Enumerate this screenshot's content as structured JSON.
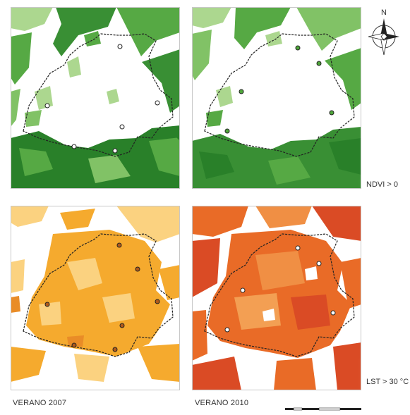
{
  "labels": {
    "ndvi": "NDVI > 0",
    "lst": "LST > 30 °C",
    "year_2007": "VERANO 2007",
    "year_2010": "VERANO 2010",
    "north": "N"
  },
  "colors": {
    "ndvi_dark": "#1e7a1e",
    "ndvi_mid": "#4ea53a",
    "ndvi_light": "#a8d58a",
    "lst_2007_main": "#f5a623",
    "lst_2007_light": "#fbd07a",
    "lst_2010_main": "#e8641c",
    "lst_2010_dark": "#d9421a",
    "boundary": "#222222"
  },
  "panels": [
    {
      "variable": "NDVI",
      "year": "2007",
      "layer": "vegetation"
    },
    {
      "variable": "NDVI",
      "year": "2010",
      "layer": "vegetation"
    },
    {
      "variable": "LST",
      "year": "2007",
      "layer": "temperature"
    },
    {
      "variable": "LST",
      "year": "2010",
      "layer": "temperature"
    }
  ]
}
